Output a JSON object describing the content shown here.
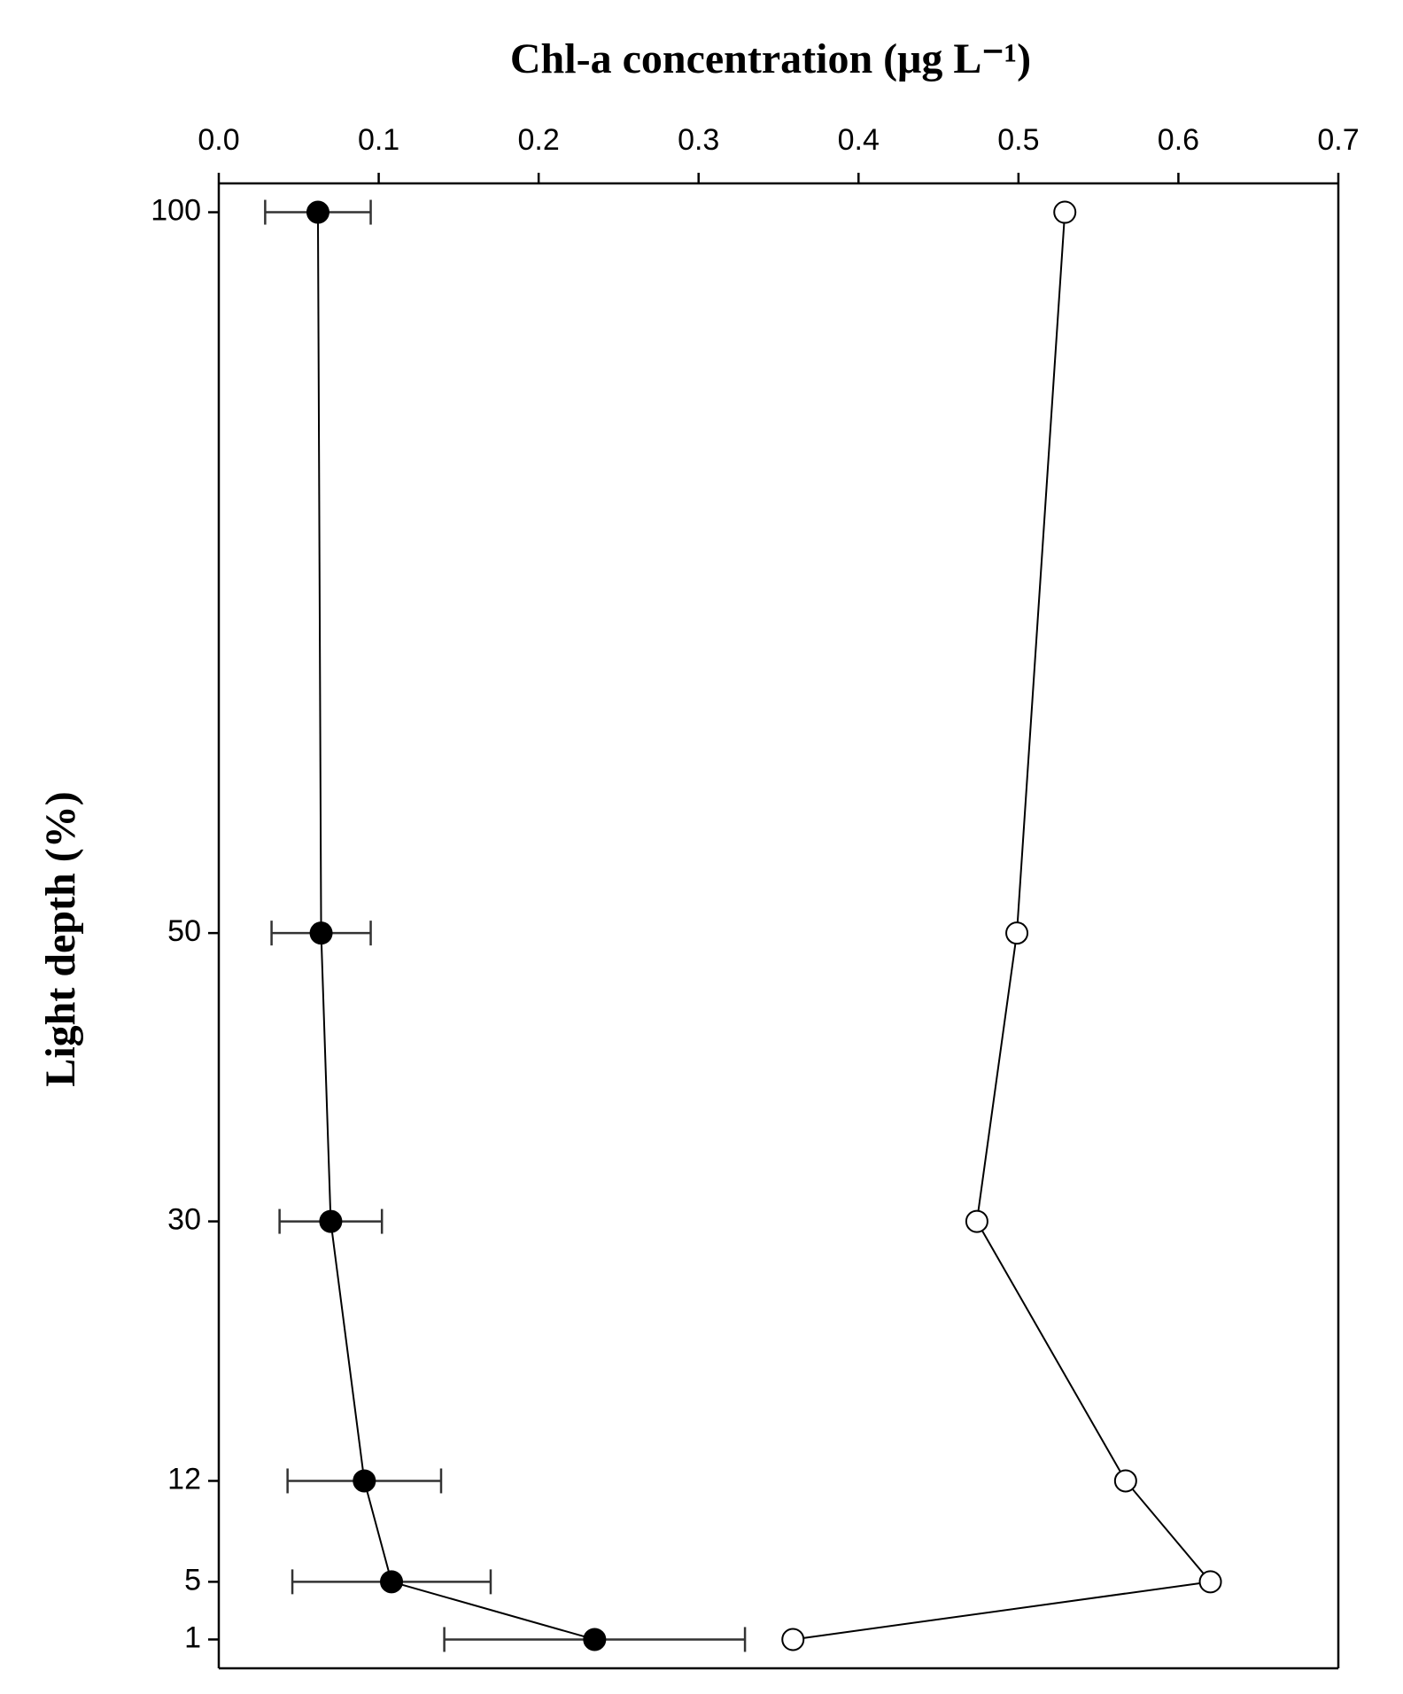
{
  "chart_data": {
    "type": "line",
    "x_label": "Chl-a concentration (μg L⁻¹)",
    "y_label": "Light depth (%)",
    "y": [
      100,
      50,
      30,
      12,
      5,
      1
    ],
    "series": [
      {
        "color": "#000000",
        "marker_fill": "#000000",
        "values": [
          0.062,
          0.064,
          0.07,
          0.091,
          0.108,
          0.235
        ],
        "errors": [
          0.033,
          0.031,
          0.032,
          0.048,
          0.062,
          0.094
        ]
      },
      {
        "color": "#000000",
        "marker_fill": "#ffffff",
        "values": [
          0.529,
          0.499,
          0.474,
          0.567,
          0.62,
          0.359
        ]
      }
    ],
    "xlim": [
      0,
      0.7
    ],
    "xticks": [
      {
        "value": 0,
        "label": "0.0"
      },
      0.1,
      0.2,
      0.3,
      0.4,
      0.5,
      0.6,
      0.7
    ],
    "ylim": [
      -1,
      102
    ],
    "y_inverted": true,
    "yticks": [
      100,
      50,
      30,
      12,
      5,
      1
    ]
  }
}
